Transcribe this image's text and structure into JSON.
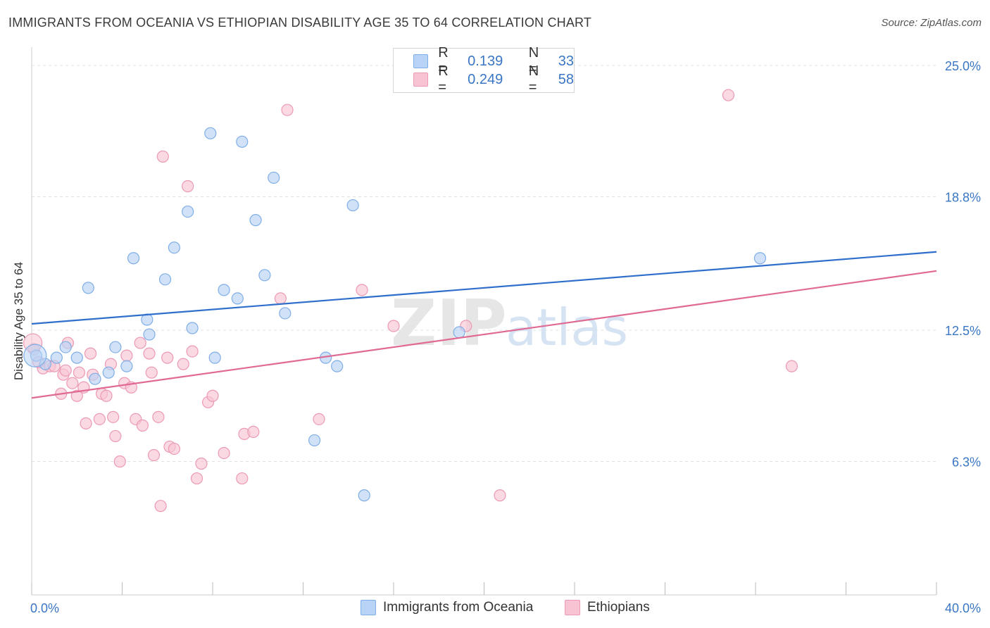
{
  "header": {
    "title": "IMMIGRANTS FROM OCEANIA VS ETHIOPIAN DISABILITY AGE 35 TO 64 CORRELATION CHART",
    "source": "Source: ZipAtlas.com"
  },
  "legend": {
    "rows": [
      {
        "r_label": "R =",
        "r_value": "0.139",
        "n_label": "N =",
        "n_value": "33"
      },
      {
        "r_label": "R =",
        "r_value": "0.249",
        "n_label": "N =",
        "n_value": "58"
      }
    ]
  },
  "bottom_legend": [
    "Immigrants from Oceania",
    "Ethiopians"
  ],
  "watermark": {
    "zip": "ZIP",
    "atlas": "atlas"
  },
  "colors": {
    "blue_fill": "#b8d3f5",
    "blue_stroke": "#7faee6",
    "blue_line": "#2f6fcb",
    "pink_fill": "#f8c4d4",
    "pink_stroke": "#ec9ab4",
    "pink_line": "#e06a93",
    "axis_text": "#3a76c4"
  },
  "chart_data": {
    "type": "scatter",
    "title": "IMMIGRANTS FROM OCEANIA VS ETHIOPIAN DISABILITY AGE 35 TO 64 CORRELATION CHART",
    "xlabel": "",
    "ylabel": "Disability Age 35 to 64",
    "xlim": [
      0,
      40
    ],
    "ylim": [
      0,
      25.6
    ],
    "x_tick_labels": [
      {
        "value": 0,
        "label": "0.0%"
      },
      {
        "value": 40,
        "label": "40.0%"
      }
    ],
    "y_ticks": [
      {
        "value": 6.3,
        "label": "6.3%"
      },
      {
        "value": 12.5,
        "label": "12.5%"
      },
      {
        "value": 18.8,
        "label": "18.8%"
      },
      {
        "value": 25.0,
        "label": "25.0%"
      }
    ],
    "series": [
      {
        "name": "Immigrants from Oceania",
        "R": 0.139,
        "N": 33,
        "trend": {
          "x0": 0,
          "y0": 12.8,
          "x1": 40,
          "y1": 16.2
        },
        "points": [
          [
            0.2,
            11.3
          ],
          [
            0.6,
            10.9
          ],
          [
            1.1,
            11.2
          ],
          [
            1.5,
            11.7
          ],
          [
            2.0,
            11.2
          ],
          [
            2.5,
            14.5
          ],
          [
            2.8,
            10.2
          ],
          [
            3.4,
            10.5
          ],
          [
            3.7,
            11.7
          ],
          [
            4.2,
            10.8
          ],
          [
            4.5,
            15.9
          ],
          [
            5.1,
            13.0
          ],
          [
            5.2,
            12.3
          ],
          [
            5.9,
            14.9
          ],
          [
            6.3,
            16.4
          ],
          [
            6.9,
            18.1
          ],
          [
            7.1,
            12.6
          ],
          [
            7.9,
            21.8
          ],
          [
            8.1,
            11.2
          ],
          [
            8.5,
            14.4
          ],
          [
            9.1,
            14.0
          ],
          [
            9.3,
            21.4
          ],
          [
            9.9,
            17.7
          ],
          [
            10.3,
            15.1
          ],
          [
            10.7,
            19.7
          ],
          [
            11.2,
            13.3
          ],
          [
            12.5,
            7.3
          ],
          [
            13.0,
            11.2
          ],
          [
            13.5,
            10.8
          ],
          [
            14.2,
            18.4
          ],
          [
            14.7,
            4.7
          ],
          [
            18.9,
            12.4
          ],
          [
            32.2,
            15.9
          ]
        ]
      },
      {
        "name": "Ethiopians",
        "R": 0.249,
        "N": 58,
        "trend": {
          "x0": 0,
          "y0": 9.3,
          "x1": 40,
          "y1": 15.3
        },
        "points": [
          [
            0.1,
            11.6
          ],
          [
            0.5,
            10.7
          ],
          [
            0.8,
            10.8
          ],
          [
            1.0,
            10.8
          ],
          [
            1.3,
            9.5
          ],
          [
            1.4,
            10.4
          ],
          [
            1.6,
            11.9
          ],
          [
            1.8,
            10.0
          ],
          [
            2.0,
            9.4
          ],
          [
            2.1,
            10.5
          ],
          [
            2.3,
            9.8
          ],
          [
            2.4,
            8.1
          ],
          [
            2.6,
            11.4
          ],
          [
            2.7,
            10.4
          ],
          [
            3.0,
            8.3
          ],
          [
            3.1,
            9.5
          ],
          [
            3.3,
            9.4
          ],
          [
            3.5,
            10.9
          ],
          [
            3.6,
            8.4
          ],
          [
            3.7,
            7.5
          ],
          [
            3.9,
            6.3
          ],
          [
            4.1,
            10.0
          ],
          [
            4.2,
            11.3
          ],
          [
            4.4,
            9.8
          ],
          [
            4.6,
            8.3
          ],
          [
            4.8,
            11.9
          ],
          [
            4.9,
            8.0
          ],
          [
            5.2,
            11.4
          ],
          [
            5.3,
            10.5
          ],
          [
            5.4,
            6.6
          ],
          [
            5.6,
            8.4
          ],
          [
            5.7,
            4.2
          ],
          [
            5.8,
            20.7
          ],
          [
            6.0,
            11.2
          ],
          [
            6.1,
            7.0
          ],
          [
            6.3,
            6.9
          ],
          [
            6.7,
            10.9
          ],
          [
            6.9,
            19.3
          ],
          [
            7.1,
            11.5
          ],
          [
            7.3,
            5.5
          ],
          [
            7.5,
            6.2
          ],
          [
            7.8,
            9.1
          ],
          [
            8.0,
            9.4
          ],
          [
            8.5,
            6.7
          ],
          [
            9.3,
            5.5
          ],
          [
            9.4,
            7.6
          ],
          [
            9.8,
            7.7
          ],
          [
            11.0,
            14.0
          ],
          [
            11.3,
            22.9
          ],
          [
            12.7,
            8.3
          ],
          [
            14.6,
            14.4
          ],
          [
            16.0,
            12.7
          ],
          [
            19.2,
            12.7
          ],
          [
            20.7,
            4.7
          ],
          [
            30.8,
            23.6
          ],
          [
            33.6,
            10.8
          ],
          [
            0.3,
            11.0
          ],
          [
            1.5,
            10.6
          ]
        ]
      }
    ]
  }
}
